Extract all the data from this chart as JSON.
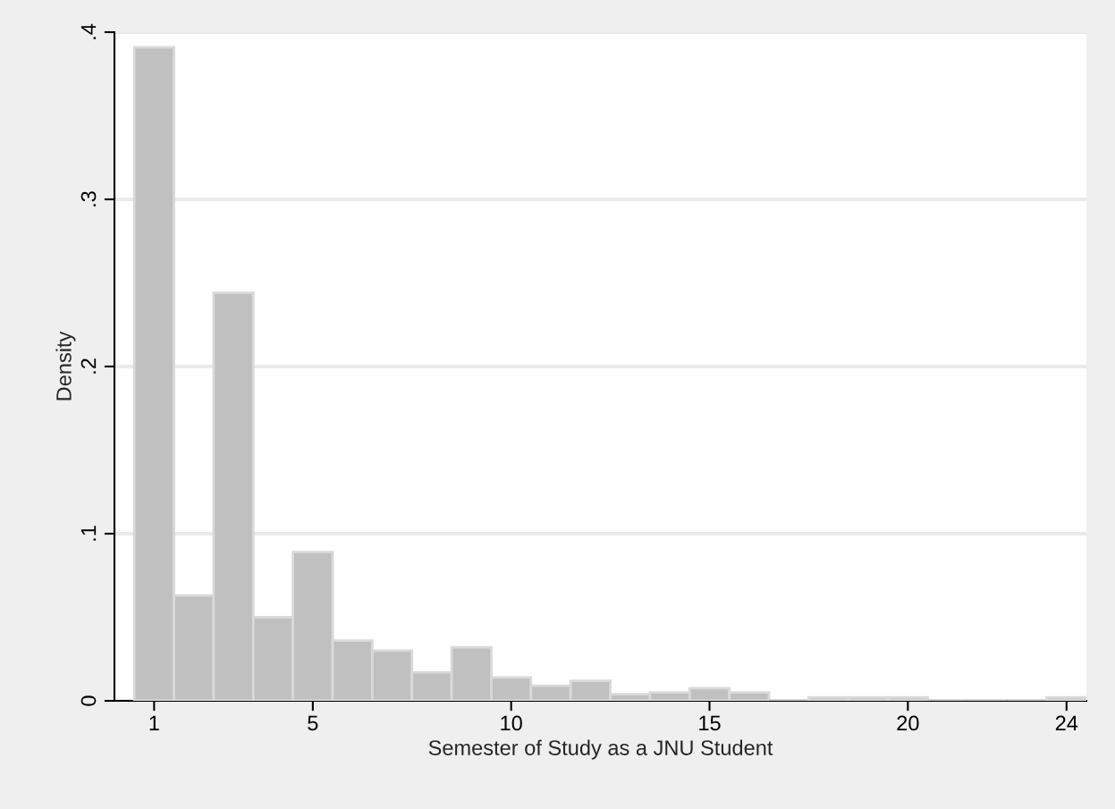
{
  "chart_data": {
    "type": "histogram",
    "xlabel": "Semester of Study as a JNU Student",
    "ylabel": "Density",
    "bins": [
      0.5,
      1.5,
      2.5,
      3.5,
      4.5,
      5.5,
      6.5,
      7.5,
      8.5,
      9.5,
      10.5,
      11.5,
      12.5,
      13.5,
      14.5,
      15.5,
      16.5,
      17.5,
      18.5,
      19.5,
      20.5,
      21.5,
      22.5,
      23.5,
      24.5
    ],
    "values": [
      0.391,
      0.063,
      0.244,
      0.05,
      0.089,
      0.036,
      0.03,
      0.017,
      0.032,
      0.014,
      0.009,
      0.012,
      0.004,
      0.005,
      0.0075,
      0.005,
      0,
      0.002,
      0.002,
      0.002,
      0,
      0,
      0,
      0.002
    ],
    "color": "#c0c0c0",
    "xlim": [
      0,
      24.5
    ],
    "xticks": [
      1,
      5,
      10,
      15,
      20,
      24
    ],
    "ylim": [
      0,
      0.4
    ],
    "yticks": [
      {
        "value": 0,
        "label": "0"
      },
      {
        "value": 0.1,
        "label": ".1"
      },
      {
        "value": 0.2,
        "label": ".2"
      },
      {
        "value": 0.3,
        "label": ".3"
      },
      {
        "value": 0.4,
        "label": ".4"
      }
    ],
    "grid": "y"
  }
}
